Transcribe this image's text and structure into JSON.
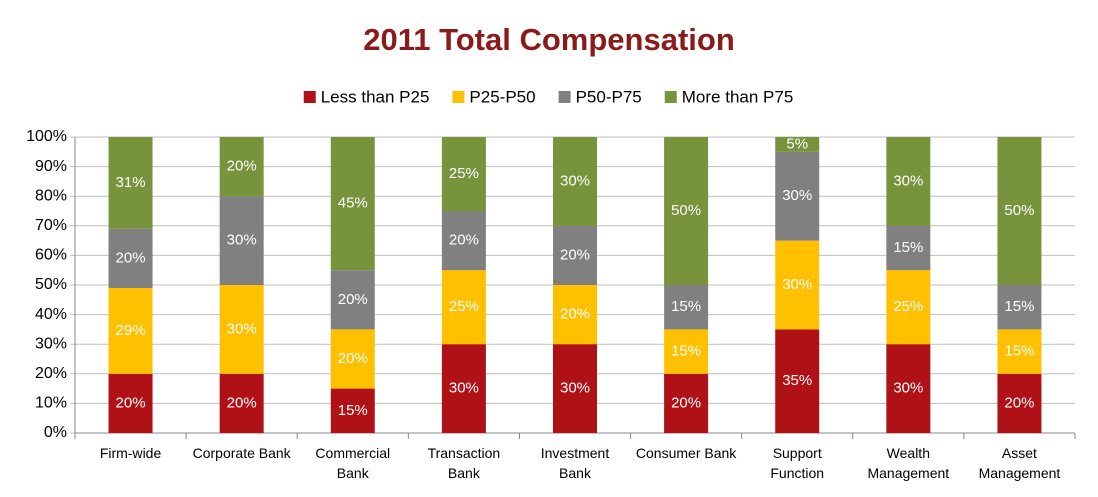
{
  "chart_data": {
    "type": "stacked-bar",
    "title": "2011 Total Compensation",
    "categories": [
      "Firm-wide",
      "Corporate Bank",
      "Commercial\nBank",
      "Transaction\nBank",
      "Investment\nBank",
      "Consumer Bank",
      "Support\nFunction",
      "Wealth\nManagement",
      "Asset\nManagement"
    ],
    "series": [
      {
        "name": "Less than P25",
        "color": "#b01116",
        "values": [
          20,
          20,
          15,
          30,
          30,
          20,
          35,
          30,
          20
        ],
        "value_labels": [
          "20%",
          "20%",
          "15%",
          "30%",
          "30%",
          "20%",
          "35%",
          "30%",
          "20%"
        ]
      },
      {
        "name": "P25-P50",
        "color": "#ffc000",
        "values": [
          29,
          30,
          20,
          25,
          20,
          15,
          30,
          25,
          15
        ],
        "value_labels": [
          "29%",
          "30%",
          "20%",
          "25%",
          "20%",
          "15%",
          "30%",
          "25%",
          "15%"
        ]
      },
      {
        "name": "P50-P75",
        "color": "#808080",
        "values": [
          20,
          30,
          20,
          20,
          20,
          15,
          30,
          15,
          15
        ],
        "value_labels": [
          "20%",
          "30%",
          "20%",
          "20%",
          "20%",
          "15%",
          "30%",
          "15%",
          "15%"
        ]
      },
      {
        "name": "More than P75",
        "color": "#77933c",
        "values": [
          31,
          20,
          45,
          25,
          30,
          50,
          5,
          30,
          50
        ],
        "value_labels": [
          "31%",
          "20%",
          "45%",
          "25%",
          "30%",
          "50%",
          "5%",
          "30%",
          "50%"
        ]
      }
    ],
    "ylim": [
      0,
      100
    ],
    "yticks": [
      {
        "value": 0,
        "label": "0%"
      },
      {
        "value": 10,
        "label": "10%"
      },
      {
        "value": 20,
        "label": "20%"
      },
      {
        "value": 30,
        "label": "30%"
      },
      {
        "value": 40,
        "label": "40%"
      },
      {
        "value": 50,
        "label": "50%"
      },
      {
        "value": 60,
        "label": "60%"
      },
      {
        "value": 70,
        "label": "70%"
      },
      {
        "value": 80,
        "label": "80%"
      },
      {
        "value": 90,
        "label": "90%"
      },
      {
        "value": 100,
        "label": "100%"
      }
    ],
    "grid": true,
    "legend": "top"
  }
}
